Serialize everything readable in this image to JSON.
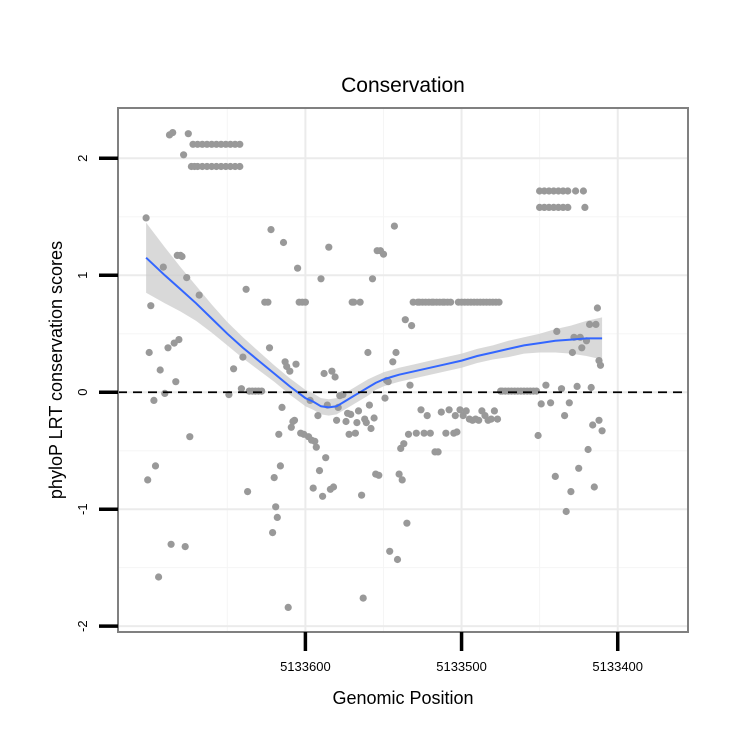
{
  "chart_data": {
    "type": "scatter",
    "title": "Conservation",
    "xlabel": "Genomic Position",
    "ylabel": "phyloP LRT conservation scores",
    "x_reversed": true,
    "xlim": [
      5133720,
      5133355
    ],
    "ylim": [
      -2.05,
      2.43
    ],
    "x_ticks": [
      5133600,
      5133500,
      5133400
    ],
    "x_tick_labels": [
      "5133600",
      "5133500",
      "5133400"
    ],
    "x_minor_gridlines": [
      5133650,
      5133550,
      5133450
    ],
    "y_ticks": [
      -2,
      -1,
      0,
      1,
      2
    ],
    "y_tick_labels": [
      "-2",
      "-1",
      "0",
      "1",
      "2"
    ],
    "y_minor_gridlines": [
      -1.5,
      -0.5,
      0.5,
      1.5
    ],
    "grid": true,
    "reference_line": {
      "y": 0,
      "style": "dashed",
      "color": "#000000"
    },
    "point_color": "#999999",
    "smooth_color": "#3366ff",
    "ribbon_color": "#cccccc",
    "points": [
      {
        "x": 5133702,
        "y": 1.49
      },
      {
        "x": 5133701,
        "y": -0.75
      },
      {
        "x": 5133700,
        "y": 0.34
      },
      {
        "x": 5133699,
        "y": 0.74
      },
      {
        "x": 5133697,
        "y": -0.07
      },
      {
        "x": 5133696,
        "y": -0.63
      },
      {
        "x": 5133694,
        "y": -1.58
      },
      {
        "x": 5133693,
        "y": 0.19
      },
      {
        "x": 5133691,
        "y": 1.07
      },
      {
        "x": 5133690,
        "y": -0.01
      },
      {
        "x": 5133688,
        "y": 0.38
      },
      {
        "x": 5133687,
        "y": 2.2
      },
      {
        "x": 5133686,
        "y": -1.3
      },
      {
        "x": 5133685,
        "y": 2.22
      },
      {
        "x": 5133684,
        "y": 0.42
      },
      {
        "x": 5133683,
        "y": 0.09
      },
      {
        "x": 5133682,
        "y": 1.17
      },
      {
        "x": 5133681,
        "y": 0.45
      },
      {
        "x": 5133680,
        "y": 1.17
      },
      {
        "x": 5133679,
        "y": 1.16
      },
      {
        "x": 5133678,
        "y": 2.03
      },
      {
        "x": 5133677,
        "y": -1.32
      },
      {
        "x": 5133676,
        "y": 0.98
      },
      {
        "x": 5133675,
        "y": 2.21
      },
      {
        "x": 5133674,
        "y": -0.38
      },
      {
        "x": 5133673,
        "y": 1.93
      },
      {
        "x": 5133672,
        "y": 2.12
      },
      {
        "x": 5133671,
        "y": 1.93
      },
      {
        "x": 5133669,
        "y": 2.12
      },
      {
        "x": 5133669,
        "y": 1.93
      },
      {
        "x": 5133668,
        "y": 0.83
      },
      {
        "x": 5133666,
        "y": 2.12
      },
      {
        "x": 5133666,
        "y": 1.93
      },
      {
        "x": 5133663,
        "y": 2.12
      },
      {
        "x": 5133663,
        "y": 1.93
      },
      {
        "x": 5133660,
        "y": 2.12
      },
      {
        "x": 5133660,
        "y": 1.93
      },
      {
        "x": 5133657,
        "y": 2.12
      },
      {
        "x": 5133657,
        "y": 1.93
      },
      {
        "x": 5133654,
        "y": 2.12
      },
      {
        "x": 5133654,
        "y": 1.93
      },
      {
        "x": 5133651,
        "y": 2.12
      },
      {
        "x": 5133651,
        "y": 1.93
      },
      {
        "x": 5133649,
        "y": -0.02
      },
      {
        "x": 5133648,
        "y": 2.12
      },
      {
        "x": 5133648,
        "y": 1.93
      },
      {
        "x": 5133646,
        "y": 0.2
      },
      {
        "x": 5133645,
        "y": 2.12
      },
      {
        "x": 5133645,
        "y": 1.93
      },
      {
        "x": 5133642,
        "y": 2.12
      },
      {
        "x": 5133642,
        "y": 1.93
      },
      {
        "x": 5133641,
        "y": 0.03
      },
      {
        "x": 5133640,
        "y": 0.3
      },
      {
        "x": 5133638,
        "y": 0.88
      },
      {
        "x": 5133637,
        "y": -0.85
      },
      {
        "x": 5133636,
        "y": 0.01
      },
      {
        "x": 5133634,
        "y": 0.01
      },
      {
        "x": 5133632,
        "y": 0.01
      },
      {
        "x": 5133630,
        "y": 0.01
      },
      {
        "x": 5133628,
        "y": 0.01
      },
      {
        "x": 5133626,
        "y": 0.77
      },
      {
        "x": 5133624,
        "y": 0.77
      },
      {
        "x": 5133623,
        "y": 0.38
      },
      {
        "x": 5133622,
        "y": 1.39
      },
      {
        "x": 5133621,
        "y": -1.2
      },
      {
        "x": 5133620,
        "y": -0.73
      },
      {
        "x": 5133619,
        "y": -0.98
      },
      {
        "x": 5133618,
        "y": -1.07
      },
      {
        "x": 5133617,
        "y": -0.36
      },
      {
        "x": 5133616,
        "y": -0.63
      },
      {
        "x": 5133615,
        "y": -0.13
      },
      {
        "x": 5133614,
        "y": 1.28
      },
      {
        "x": 5133613,
        "y": 0.26
      },
      {
        "x": 5133612,
        "y": 0.22
      },
      {
        "x": 5133611,
        "y": -1.84
      },
      {
        "x": 5133610,
        "y": 0.18
      },
      {
        "x": 5133609,
        "y": -0.3
      },
      {
        "x": 5133608,
        "y": -0.25
      },
      {
        "x": 5133607,
        "y": -0.24
      },
      {
        "x": 5133606,
        "y": 0.24
      },
      {
        "x": 5133605,
        "y": 1.06
      },
      {
        "x": 5133604,
        "y": 0.77
      },
      {
        "x": 5133603,
        "y": -0.35
      },
      {
        "x": 5133602,
        "y": 0.77
      },
      {
        "x": 5133601,
        "y": -0.36
      },
      {
        "x": 5133600,
        "y": 0.77
      },
      {
        "x": 5133598,
        "y": -0.38
      },
      {
        "x": 5133597,
        "y": -0.07
      },
      {
        "x": 5133596,
        "y": -0.41
      },
      {
        "x": 5133595,
        "y": -0.82
      },
      {
        "x": 5133594,
        "y": -0.42
      },
      {
        "x": 5133593,
        "y": -0.47
      },
      {
        "x": 5133592,
        "y": -0.2
      },
      {
        "x": 5133591,
        "y": -0.67
      },
      {
        "x": 5133590,
        "y": 0.97
      },
      {
        "x": 5133589,
        "y": -0.89
      },
      {
        "x": 5133588,
        "y": 0.16
      },
      {
        "x": 5133587,
        "y": -0.56
      },
      {
        "x": 5133586,
        "y": -0.11
      },
      {
        "x": 5133585,
        "y": 1.24
      },
      {
        "x": 5133584,
        "y": -0.83
      },
      {
        "x": 5133583,
        "y": 0.18
      },
      {
        "x": 5133582,
        "y": -0.81
      },
      {
        "x": 5133581,
        "y": 0.13
      },
      {
        "x": 5133580,
        "y": -0.24
      },
      {
        "x": 5133579,
        "y": -0.13
      },
      {
        "x": 5133578,
        "y": -0.03
      },
      {
        "x": 5133576,
        "y": -0.02
      },
      {
        "x": 5133574,
        "y": -0.25
      },
      {
        "x": 5133573,
        "y": -0.18
      },
      {
        "x": 5133572,
        "y": -0.36
      },
      {
        "x": 5133571,
        "y": -0.19
      },
      {
        "x": 5133570,
        "y": 0.77
      },
      {
        "x": 5133569,
        "y": 0.77
      },
      {
        "x": 5133568,
        "y": -0.35
      },
      {
        "x": 5133567,
        "y": -0.26
      },
      {
        "x": 5133566,
        "y": -0.16
      },
      {
        "x": 5133565,
        "y": 0.77
      },
      {
        "x": 5133564,
        "y": -0.88
      },
      {
        "x": 5133563,
        "y": -1.76
      },
      {
        "x": 5133562,
        "y": -0.23
      },
      {
        "x": 5133561,
        "y": -0.26
      },
      {
        "x": 5133560,
        "y": 0.34
      },
      {
        "x": 5133559,
        "y": -0.11
      },
      {
        "x": 5133558,
        "y": -0.31
      },
      {
        "x": 5133557,
        "y": 0.97
      },
      {
        "x": 5133556,
        "y": -0.22
      },
      {
        "x": 5133555,
        "y": -0.7
      },
      {
        "x": 5133554,
        "y": 1.21
      },
      {
        "x": 5133553,
        "y": -0.71
      },
      {
        "x": 5133552,
        "y": 1.21
      },
      {
        "x": 5133550,
        "y": 1.18
      },
      {
        "x": 5133549,
        "y": -0.05
      },
      {
        "x": 5133548,
        "y": 0.1
      },
      {
        "x": 5133547,
        "y": 0.09
      },
      {
        "x": 5133546,
        "y": -1.36
      },
      {
        "x": 5133544,
        "y": 0.26
      },
      {
        "x": 5133543,
        "y": 1.42
      },
      {
        "x": 5133542,
        "y": 0.34
      },
      {
        "x": 5133541,
        "y": -1.43
      },
      {
        "x": 5133540,
        "y": -0.7
      },
      {
        "x": 5133539,
        "y": -0.48
      },
      {
        "x": 5133538,
        "y": -0.75
      },
      {
        "x": 5133537,
        "y": -0.44
      },
      {
        "x": 5133536,
        "y": 0.62
      },
      {
        "x": 5133535,
        "y": -1.12
      },
      {
        "x": 5133534,
        "y": -0.36
      },
      {
        "x": 5133533,
        "y": 0.06
      },
      {
        "x": 5133532,
        "y": 0.57
      },
      {
        "x": 5133531,
        "y": 0.77
      },
      {
        "x": 5133529,
        "y": -0.35
      },
      {
        "x": 5133528,
        "y": 0.77
      },
      {
        "x": 5133527,
        "y": 0.77
      },
      {
        "x": 5133526,
        "y": -0.15
      },
      {
        "x": 5133525,
        "y": 0.77
      },
      {
        "x": 5133524,
        "y": -0.35
      },
      {
        "x": 5133523,
        "y": 0.77
      },
      {
        "x": 5133522,
        "y": -0.2
      },
      {
        "x": 5133521,
        "y": 0.77
      },
      {
        "x": 5133520,
        "y": -0.35
      },
      {
        "x": 5133519,
        "y": 0.77
      },
      {
        "x": 5133518,
        "y": 0.77
      },
      {
        "x": 5133517,
        "y": -0.51
      },
      {
        "x": 5133516,
        "y": 0.77
      },
      {
        "x": 5133515,
        "y": -0.51
      },
      {
        "x": 5133514,
        "y": 0.77
      },
      {
        "x": 5133513,
        "y": -0.17
      },
      {
        "x": 5133512,
        "y": 0.77
      },
      {
        "x": 5133511,
        "y": 0.77
      },
      {
        "x": 5133510,
        "y": -0.35
      },
      {
        "x": 5133509,
        "y": 0.77
      },
      {
        "x": 5133508,
        "y": -0.15
      },
      {
        "x": 5133507,
        "y": 0.77
      },
      {
        "x": 5133505,
        "y": -0.35
      },
      {
        "x": 5133504,
        "y": -0.2
      },
      {
        "x": 5133503,
        "y": -0.34
      },
      {
        "x": 5133502,
        "y": 0.77
      },
      {
        "x": 5133501,
        "y": -0.15
      },
      {
        "x": 5133500,
        "y": 0.77
      },
      {
        "x": 5133499,
        "y": -0.2
      },
      {
        "x": 5133498,
        "y": 0.77
      },
      {
        "x": 5133497,
        "y": -0.16
      },
      {
        "x": 5133496,
        "y": 0.77
      },
      {
        "x": 5133495,
        "y": -0.23
      },
      {
        "x": 5133494,
        "y": 0.77
      },
      {
        "x": 5133493,
        "y": -0.24
      },
      {
        "x": 5133492,
        "y": 0.77
      },
      {
        "x": 5133491,
        "y": -0.23
      },
      {
        "x": 5133490,
        "y": 0.77
      },
      {
        "x": 5133489,
        "y": -0.24
      },
      {
        "x": 5133488,
        "y": 0.77
      },
      {
        "x": 5133487,
        "y": -0.16
      },
      {
        "x": 5133486,
        "y": 0.77
      },
      {
        "x": 5133485,
        "y": -0.2
      },
      {
        "x": 5133484,
        "y": 0.77
      },
      {
        "x": 5133483,
        "y": -0.24
      },
      {
        "x": 5133482,
        "y": 0.77
      },
      {
        "x": 5133481,
        "y": -0.23
      },
      {
        "x": 5133480,
        "y": 0.77
      },
      {
        "x": 5133479,
        "y": -0.16
      },
      {
        "x": 5133478,
        "y": 0.77
      },
      {
        "x": 5133477,
        "y": -0.23
      },
      {
        "x": 5133476,
        "y": 0.77
      },
      {
        "x": 5133475,
        "y": 0.01
      },
      {
        "x": 5133474,
        "y": 0.01
      },
      {
        "x": 5133472,
        "y": 0.01
      },
      {
        "x": 5133470,
        "y": 0.01
      },
      {
        "x": 5133468,
        "y": 0.01
      },
      {
        "x": 5133466,
        "y": 0.01
      },
      {
        "x": 5133464,
        "y": 0.01
      },
      {
        "x": 5133462,
        "y": 0.01
      },
      {
        "x": 5133460,
        "y": 0.01
      },
      {
        "x": 5133458,
        "y": 0.01
      },
      {
        "x": 5133456,
        "y": 0.01
      },
      {
        "x": 5133454,
        "y": 0.01
      },
      {
        "x": 5133452,
        "y": 0.01
      },
      {
        "x": 5133451,
        "y": -0.37
      },
      {
        "x": 5133450,
        "y": 1.72
      },
      {
        "x": 5133450,
        "y": 1.58
      },
      {
        "x": 5133449,
        "y": -0.1
      },
      {
        "x": 5133447,
        "y": 1.72
      },
      {
        "x": 5133447,
        "y": 1.58
      },
      {
        "x": 5133446,
        "y": 0.06
      },
      {
        "x": 5133444,
        "y": 1.72
      },
      {
        "x": 5133444,
        "y": 1.58
      },
      {
        "x": 5133443,
        "y": -0.09
      },
      {
        "x": 5133441,
        "y": 1.72
      },
      {
        "x": 5133441,
        "y": 1.58
      },
      {
        "x": 5133440,
        "y": -0.72
      },
      {
        "x": 5133439,
        "y": 0.52
      },
      {
        "x": 5133438,
        "y": 1.72
      },
      {
        "x": 5133438,
        "y": 1.58
      },
      {
        "x": 5133436,
        "y": 0.03
      },
      {
        "x": 5133435,
        "y": 1.72
      },
      {
        "x": 5133435,
        "y": 1.58
      },
      {
        "x": 5133434,
        "y": -0.2
      },
      {
        "x": 5133433,
        "y": -1.02
      },
      {
        "x": 5133432,
        "y": 1.72
      },
      {
        "x": 5133432,
        "y": 1.58
      },
      {
        "x": 5133431,
        "y": -0.09
      },
      {
        "x": 5133430,
        "y": -0.85
      },
      {
        "x": 5133429,
        "y": 0.34
      },
      {
        "x": 5133428,
        "y": 0.47
      },
      {
        "x": 5133427,
        "y": 1.72
      },
      {
        "x": 5133426,
        "y": 0.05
      },
      {
        "x": 5133425,
        "y": -0.65
      },
      {
        "x": 5133424,
        "y": 0.47
      },
      {
        "x": 5133423,
        "y": 0.38
      },
      {
        "x": 5133422,
        "y": 1.72
      },
      {
        "x": 5133421,
        "y": 1.58
      },
      {
        "x": 5133420,
        "y": 0.44
      },
      {
        "x": 5133419,
        "y": -0.49
      },
      {
        "x": 5133418,
        "y": 0.58
      },
      {
        "x": 5133417,
        "y": 0.04
      },
      {
        "x": 5133416,
        "y": -0.28
      },
      {
        "x": 5133415,
        "y": -0.81
      },
      {
        "x": 5133414,
        "y": 0.58
      },
      {
        "x": 5133413,
        "y": 0.72
      },
      {
        "x": 5133412,
        "y": 0.27
      },
      {
        "x": 5133412,
        "y": -0.24
      },
      {
        "x": 5133411,
        "y": 0.23
      },
      {
        "x": 5133410,
        "y": -0.33
      }
    ],
    "smooth": {
      "x": [
        5133702,
        5133690,
        5133680,
        5133670,
        5133660,
        5133650,
        5133640,
        5133630,
        5133620,
        5133610,
        5133600,
        5133595,
        5133590,
        5133585,
        5133580,
        5133575,
        5133570,
        5133565,
        5133560,
        5133555,
        5133550,
        5133545,
        5133540,
        5133530,
        5133520,
        5133510,
        5133500,
        5133490,
        5133480,
        5133470,
        5133460,
        5133450,
        5133440,
        5133430,
        5133420,
        5133410
      ],
      "y": [
        1.15,
        1.0,
        0.88,
        0.76,
        0.63,
        0.5,
        0.38,
        0.27,
        0.16,
        0.05,
        -0.05,
        -0.08,
        -0.12,
        -0.13,
        -0.12,
        -0.08,
        -0.04,
        0.0,
        0.04,
        0.08,
        0.11,
        0.13,
        0.15,
        0.18,
        0.21,
        0.24,
        0.27,
        0.31,
        0.34,
        0.37,
        0.4,
        0.42,
        0.44,
        0.45,
        0.46,
        0.46
      ],
      "se": [
        0.3,
        0.24,
        0.19,
        0.15,
        0.12,
        0.1,
        0.09,
        0.08,
        0.07,
        0.07,
        0.07,
        0.07,
        0.07,
        0.07,
        0.07,
        0.07,
        0.07,
        0.07,
        0.07,
        0.06,
        0.06,
        0.06,
        0.06,
        0.06,
        0.06,
        0.06,
        0.06,
        0.06,
        0.06,
        0.07,
        0.07,
        0.08,
        0.1,
        0.12,
        0.15,
        0.18
      ]
    }
  }
}
